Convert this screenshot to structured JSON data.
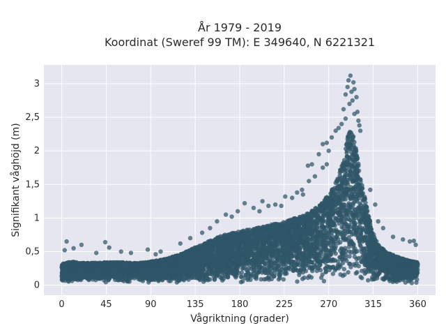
{
  "chart_data": {
    "type": "scatter",
    "title_line1": "År 1979 - 2019",
    "title_line2": "Koordinat (Sweref 99 TM): E 349640, N 6221321",
    "xlabel": "Vågriktning (grader)",
    "ylabel": "Signifikant våghöjd (m)",
    "xlim": [
      -18,
      378
    ],
    "ylim": [
      -0.15,
      3.28
    ],
    "x_ticks": [
      0,
      45,
      90,
      135,
      180,
      225,
      270,
      315,
      360
    ],
    "x_tick_labels": [
      "0",
      "45",
      "90",
      "135",
      "180",
      "225",
      "270",
      "315",
      "360"
    ],
    "y_ticks": [
      0,
      0.5,
      1,
      1.5,
      2,
      2.5,
      3
    ],
    "y_tick_labels": [
      "0",
      "0,5",
      "1",
      "1,5",
      "2",
      "2,5",
      "3"
    ],
    "grid": true,
    "plot_background": "#e5e6ef",
    "marker_color": "#2f5668",
    "envelope_upper": {
      "x": [
        0,
        10,
        20,
        30,
        45,
        60,
        75,
        90,
        105,
        120,
        135,
        150,
        160,
        170,
        180,
        190,
        200,
        210,
        220,
        230,
        240,
        250,
        260,
        270,
        275,
        280,
        285,
        290,
        295,
        300,
        305,
        310,
        315,
        320,
        330,
        340,
        350,
        360
      ],
      "y": [
        0.32,
        0.35,
        0.33,
        0.33,
        0.34,
        0.34,
        0.33,
        0.35,
        0.39,
        0.46,
        0.56,
        0.66,
        0.73,
        0.77,
        0.8,
        0.83,
        0.86,
        0.9,
        0.92,
        0.97,
        1.02,
        1.08,
        1.18,
        1.35,
        1.48,
        1.65,
        1.88,
        2.3,
        2.25,
        1.82,
        1.42,
        1.05,
        0.78,
        0.6,
        0.48,
        0.42,
        0.37,
        0.34
      ]
    },
    "outlier_points": [
      {
        "x": 292,
        "y": 3.12
      },
      {
        "x": 290,
        "y": 3.05
      },
      {
        "x": 295,
        "y": 3.02
      },
      {
        "x": 289,
        "y": 2.95
      },
      {
        "x": 296,
        "y": 2.92
      },
      {
        "x": 293,
        "y": 2.88
      },
      {
        "x": 287,
        "y": 2.84
      },
      {
        "x": 298,
        "y": 2.8
      },
      {
        "x": 294,
        "y": 2.75
      },
      {
        "x": 291,
        "y": 2.7
      },
      {
        "x": 285,
        "y": 2.62
      },
      {
        "x": 299,
        "y": 2.58
      },
      {
        "x": 296,
        "y": 2.55
      },
      {
        "x": 287,
        "y": 2.48
      },
      {
        "x": 300,
        "y": 2.45
      },
      {
        "x": 283,
        "y": 2.4
      },
      {
        "x": 301,
        "y": 2.38
      },
      {
        "x": 280,
        "y": 2.34
      },
      {
        "x": 277,
        "y": 2.3
      },
      {
        "x": 302,
        "y": 2.3
      },
      {
        "x": 273,
        "y": 2.2
      },
      {
        "x": 268,
        "y": 2.12
      },
      {
        "x": 264,
        "y": 2.1
      },
      {
        "x": 270,
        "y": 2.0
      },
      {
        "x": 260,
        "y": 1.95
      },
      {
        "x": 268,
        "y": 1.8
      },
      {
        "x": 253,
        "y": 1.8
      },
      {
        "x": 249,
        "y": 1.78
      },
      {
        "x": 264,
        "y": 1.75
      },
      {
        "x": 256,
        "y": 1.62
      },
      {
        "x": 250,
        "y": 1.55
      },
      {
        "x": 243,
        "y": 1.42
      },
      {
        "x": 238,
        "y": 1.38
      },
      {
        "x": 244,
        "y": 1.35
      },
      {
        "x": 233,
        "y": 1.3
      },
      {
        "x": 226,
        "y": 1.32
      },
      {
        "x": 216,
        "y": 1.2
      },
      {
        "x": 222,
        "y": 1.18
      },
      {
        "x": 209,
        "y": 1.18
      },
      {
        "x": 203,
        "y": 1.25
      },
      {
        "x": 194,
        "y": 1.15
      },
      {
        "x": 185,
        "y": 1.22
      },
      {
        "x": 178,
        "y": 1.1
      },
      {
        "x": 200,
        "y": 1.1
      },
      {
        "x": 166,
        "y": 1.05
      },
      {
        "x": 172,
        "y": 1.02
      },
      {
        "x": 157,
        "y": 0.95
      },
      {
        "x": 150,
        "y": 0.85
      },
      {
        "x": 142,
        "y": 0.78
      },
      {
        "x": 130,
        "y": 0.7
      },
      {
        "x": 120,
        "y": 0.62
      },
      {
        "x": 312,
        "y": 1.42
      },
      {
        "x": 317,
        "y": 1.2
      },
      {
        "x": 320,
        "y": 0.95
      },
      {
        "x": 325,
        "y": 0.85
      },
      {
        "x": 335,
        "y": 0.72
      },
      {
        "x": 345,
        "y": 0.68
      },
      {
        "x": 352,
        "y": 0.65
      },
      {
        "x": 356,
        "y": 0.66
      },
      {
        "x": 358,
        "y": 0.6
      },
      {
        "x": 5,
        "y": 0.65
      },
      {
        "x": 20,
        "y": 0.6
      },
      {
        "x": 44,
        "y": 0.64
      },
      {
        "x": 48,
        "y": 0.56
      },
      {
        "x": 60,
        "y": 0.5
      },
      {
        "x": 87,
        "y": 0.53
      },
      {
        "x": 100,
        "y": 0.5
      },
      {
        "x": 3,
        "y": 0.52
      },
      {
        "x": 12,
        "y": 0.55
      },
      {
        "x": 35,
        "y": 0.48
      },
      {
        "x": 70,
        "y": 0.48
      },
      {
        "x": 95,
        "y": 0.46
      }
    ]
  }
}
